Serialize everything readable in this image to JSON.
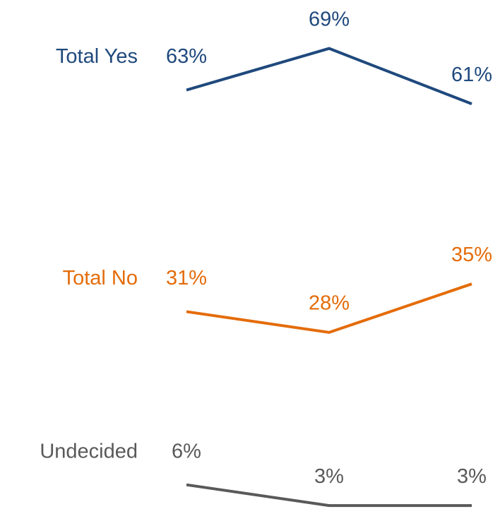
{
  "chart_data": {
    "type": "line",
    "categories": [
      null,
      null,
      null
    ],
    "ylim": [
      2.5,
      76
    ],
    "series": [
      {
        "name": "Total Yes",
        "color": "#1f497d",
        "values": [
          63,
          69,
          61
        ],
        "value_labels": [
          "63%",
          "69%",
          "61%"
        ]
      },
      {
        "name": "Total No",
        "color": "#e46c0a",
        "values": [
          31,
          28,
          35
        ],
        "value_labels": [
          "31%",
          "28%",
          "35%"
        ]
      },
      {
        "name": "Undecided",
        "color": "#595959",
        "values": [
          6,
          3,
          3
        ],
        "value_labels": [
          "6%",
          "3%",
          "3%"
        ]
      }
    ]
  }
}
